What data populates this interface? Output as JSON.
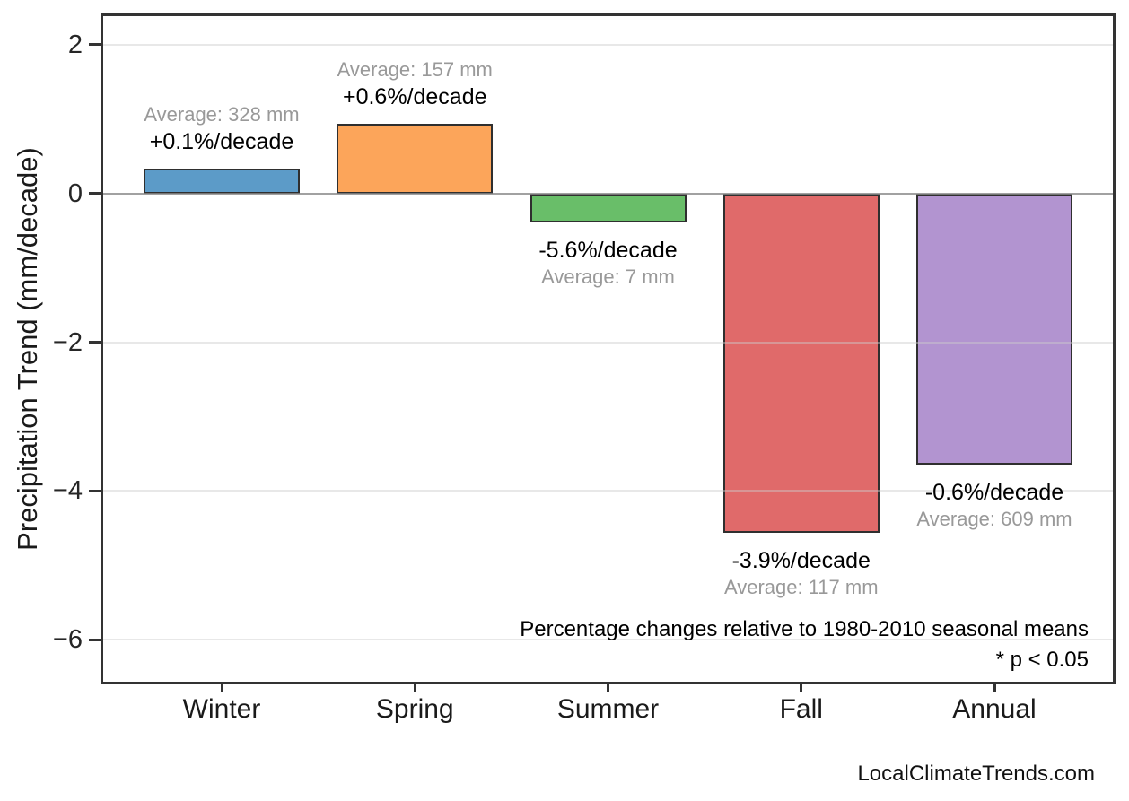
{
  "page": {
    "watermark": "LocalClimateTrends.com",
    "background": "#ffffff"
  },
  "chart_data": {
    "type": "bar",
    "title": "",
    "ylabel": "Precipitation Trend (mm/decade)",
    "xlabel": "",
    "categories": [
      "Winter",
      "Spring",
      "Summer",
      "Fall",
      "Annual"
    ],
    "values": [
      0.33,
      0.94,
      -0.39,
      -4.56,
      -3.65
    ],
    "value_unit": "mm/decade",
    "percent_labels": [
      "+0.1%/decade",
      "+0.6%/decade",
      "-5.6%/decade",
      "-3.9%/decade",
      "-0.6%/decade"
    ],
    "average_labels": [
      "Average: 328 mm",
      "Average: 157 mm",
      "Average: 7 mm",
      "Average: 117 mm",
      "Average: 609 mm"
    ],
    "averages_mm": [
      328,
      157,
      7,
      117,
      609
    ],
    "bar_colors": [
      "#5C9BC8",
      "#FCA55A",
      "#69BE69",
      "#E06A6A",
      "#B294D0"
    ],
    "bar_edge_color": "#2F2F2F",
    "yticks": [
      2,
      0,
      -2,
      -4,
      -6
    ],
    "yticklabels": [
      "2",
      "0",
      "−2",
      "−4",
      "−6"
    ],
    "ylim": [
      -6.6,
      2.42
    ],
    "grid": true,
    "gridline_color": "#e9e9e9",
    "zero_line_color": "#7f7f7f",
    "frame_color": "#333333",
    "legend": "none",
    "annotations": {
      "note_line1": "Percentage changes relative to 1980-2010 seasonal means",
      "note_line2": "* p < 0.05"
    }
  }
}
